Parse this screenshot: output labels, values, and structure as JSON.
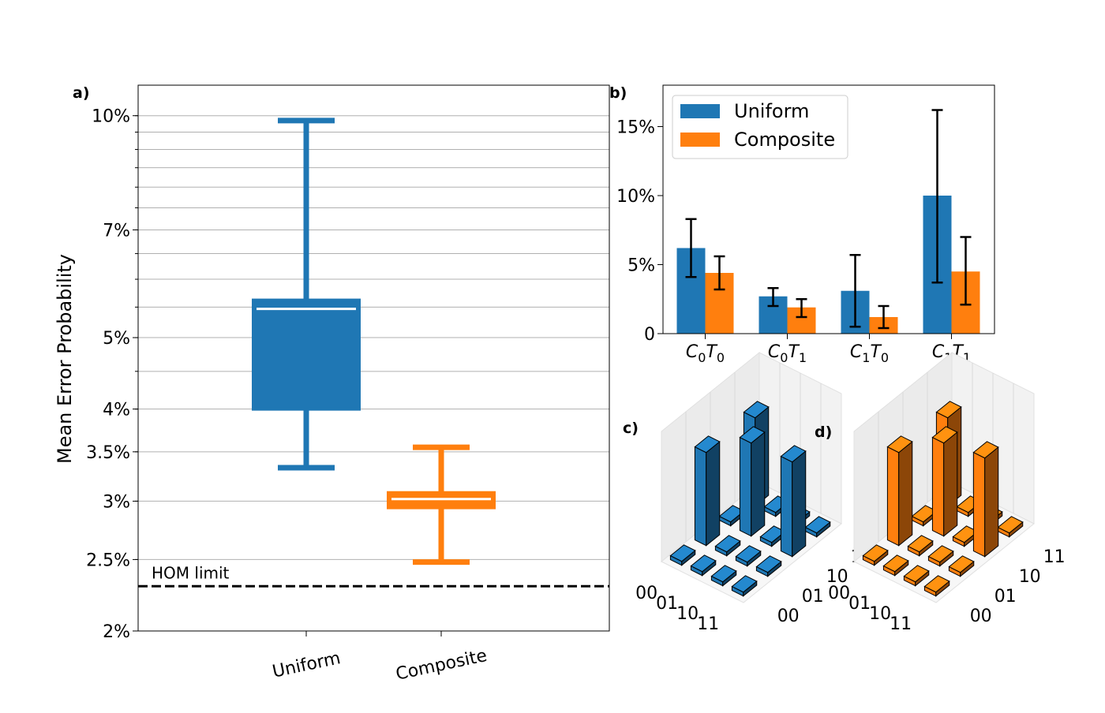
{
  "colors": {
    "uniform": "#1f77b4",
    "composite": "#ff7f0e",
    "grid": "#b0b0b0",
    "median": "#ffffff"
  },
  "chart_data": [
    {
      "panel": "a)",
      "type": "box",
      "ylabel": "Mean Error Probability",
      "yscale": "log",
      "ylim": [
        2,
        11
      ],
      "yticks": [
        {
          "value": 2,
          "label": "2%"
        },
        {
          "value": 2.5,
          "label": "2.5%"
        },
        {
          "value": 3,
          "label": "3%"
        },
        {
          "value": 3.5,
          "label": "3.5%"
        },
        {
          "value": 4,
          "label": "4%"
        },
        {
          "value": 5,
          "label": "5%"
        },
        {
          "value": 7,
          "label": "7%"
        },
        {
          "value": 10,
          "label": "10%"
        }
      ],
      "grid": true,
      "categories": [
        "Uniform",
        "Composite"
      ],
      "boxes": [
        {
          "name": "Uniform",
          "whislo": 3.33,
          "q1": 4.0,
          "med": 5.47,
          "q3": 5.62,
          "whishi": 9.85
        },
        {
          "name": "Composite",
          "whislo": 2.48,
          "q1": 2.94,
          "med": 3.02,
          "q3": 3.08,
          "whishi": 3.55
        }
      ],
      "reference_line": {
        "value": 2.3,
        "label": "HOM limit",
        "style": "dashed"
      }
    },
    {
      "panel": "b)",
      "type": "bar",
      "ylim": [
        0,
        18
      ],
      "yticks": [
        {
          "value": 0,
          "label": "0"
        },
        {
          "value": 5,
          "label": "5%"
        },
        {
          "value": 10,
          "label": "10%"
        },
        {
          "value": 15,
          "label": "15%"
        }
      ],
      "categories": [
        {
          "c": "C",
          "cs": "0",
          "t": "T",
          "ts": "0"
        },
        {
          "c": "C",
          "cs": "0",
          "t": "T",
          "ts": "1"
        },
        {
          "c": "C",
          "cs": "1",
          "t": "T",
          "ts": "0"
        },
        {
          "c": "C",
          "cs": "1",
          "t": "T",
          "ts": "1"
        }
      ],
      "legend_position": "top-left",
      "series": [
        {
          "name": "Uniform",
          "values": [
            6.2,
            2.7,
            3.1,
            10.0
          ],
          "err_low": [
            4.1,
            2.0,
            0.5,
            3.7
          ],
          "err_high": [
            8.3,
            3.3,
            5.7,
            16.2
          ]
        },
        {
          "name": "Composite",
          "values": [
            4.4,
            1.9,
            1.2,
            4.5
          ],
          "err_low": [
            3.2,
            1.2,
            0.4,
            2.1
          ],
          "err_high": [
            5.6,
            2.5,
            2.0,
            7.0
          ]
        }
      ]
    },
    {
      "panel": "c)",
      "type": "bar3d",
      "x_labels": [
        "00",
        "01",
        "10",
        "11"
      ],
      "y_labels": [
        "00",
        "01",
        "10",
        "11"
      ],
      "series": "Uniform"
    },
    {
      "panel": "d)",
      "type": "bar3d",
      "x_labels": [
        "00",
        "01",
        "10",
        "11"
      ],
      "y_labels": [
        "00",
        "01",
        "10",
        "11"
      ],
      "series": "Composite"
    }
  ]
}
